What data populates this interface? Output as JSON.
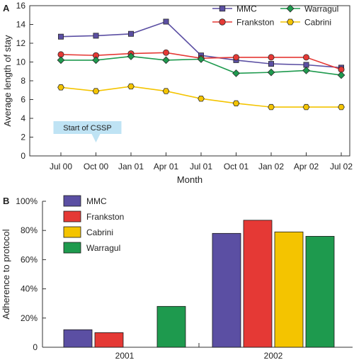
{
  "chart_data": [
    {
      "panel": "A",
      "type": "line",
      "xlabel": "Month",
      "ylabel": "Average length of stay",
      "ylim": [
        0,
        16
      ],
      "yticks": [
        0,
        2,
        4,
        6,
        8,
        10,
        12,
        14,
        16
      ],
      "categories": [
        "Jul 00",
        "Oct 00",
        "Jan 01",
        "Apr 01",
        "Jul 01",
        "Oct 01",
        "Jan 02",
        "Apr 02",
        "Jul 02"
      ],
      "series": [
        {
          "name": "MMC",
          "color": "#5B4FA3",
          "marker": "square",
          "values": [
            12.7,
            12.8,
            13.0,
            14.3,
            10.7,
            10.2,
            9.8,
            9.7,
            9.4
          ]
        },
        {
          "name": "Frankston",
          "color": "#E53935",
          "marker": "circle",
          "values": [
            10.8,
            10.7,
            10.9,
            11.0,
            10.4,
            10.5,
            10.5,
            10.5,
            9.2
          ]
        },
        {
          "name": "Warragul",
          "color": "#1E9A4E",
          "marker": "diamond",
          "values": [
            10.2,
            10.2,
            10.6,
            10.2,
            10.3,
            8.8,
            8.9,
            9.1,
            8.6
          ]
        },
        {
          "name": "Cabrini",
          "color": "#F4C400",
          "marker": "hexagon",
          "values": [
            7.3,
            6.9,
            7.4,
            6.9,
            6.1,
            5.6,
            5.2,
            5.2,
            5.2
          ]
        }
      ],
      "legend_position": "top-right",
      "legend_order": [
        "MMC",
        "Warragul",
        "Frankston",
        "Cabrini"
      ],
      "annotation": {
        "text": "Start of CSSP",
        "category": "Oct 00",
        "color": "#BFE3F4"
      },
      "grid": false
    },
    {
      "panel": "B",
      "type": "bar",
      "xlabel": "",
      "ylabel": "Adherence to protocol",
      "ylim": [
        0,
        100
      ],
      "yticks": [
        0,
        20,
        40,
        60,
        80,
        100
      ],
      "ytick_labels": [
        "0",
        "20%",
        "40%",
        "60%",
        "80%",
        "100%"
      ],
      "categories": [
        "2001",
        "2002"
      ],
      "series": [
        {
          "name": "MMC",
          "color": "#5B4FA3",
          "values": [
            12,
            78
          ]
        },
        {
          "name": "Frankston",
          "color": "#E53935",
          "values": [
            10,
            87
          ]
        },
        {
          "name": "Cabrini",
          "color": "#F4C400",
          "values": [
            0,
            79
          ]
        },
        {
          "name": "Warragul",
          "color": "#1E9A4E",
          "values": [
            28,
            76
          ]
        }
      ],
      "legend_position": "top-left",
      "grid": false
    }
  ]
}
